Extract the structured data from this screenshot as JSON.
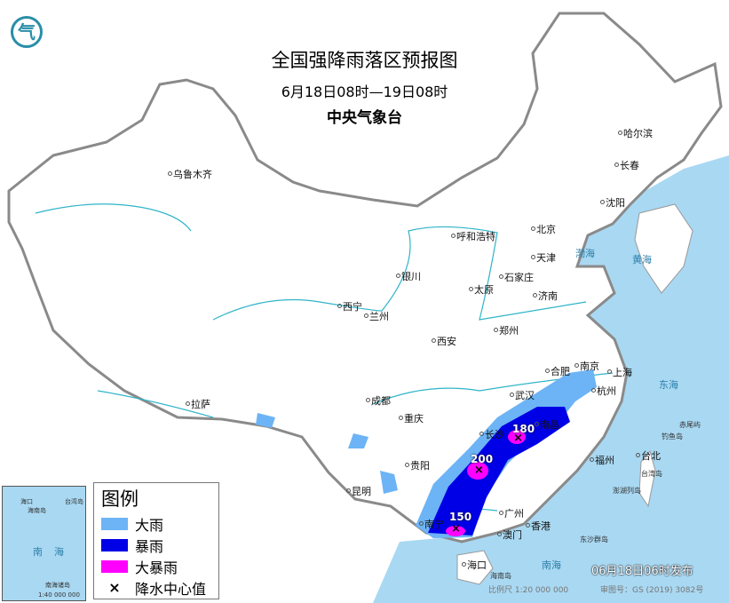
{
  "title": "全国强降雨落区预报图",
  "period": "6月18日08时—19日08时",
  "issuer": "中央气象台",
  "issue_time": "06月18日06时发布",
  "scale": "比例尺 1:20 000 000",
  "map_number": "审图号：GS (2019) 3082号",
  "colors": {
    "heavy_rain": "#6cb4f5",
    "rainstorm": "#0000e6",
    "heavy_rainstorm": "#ff00ff",
    "sea": "#a9d8f2"
  },
  "legend": {
    "title": "图例",
    "items": [
      "大雨",
      "暴雨",
      "大暴雨",
      "降水中心值"
    ],
    "marker": "×"
  },
  "cities": [
    "乌鲁木齐",
    "拉萨",
    "西宁",
    "兰州",
    "银川",
    "呼和浩特",
    "北京",
    "天津",
    "石家庄",
    "太原",
    "济南",
    "郑州",
    "西安",
    "成都",
    "重庆",
    "贵阳",
    "昆明",
    "南宁",
    "广州",
    "澳门",
    "香港",
    "海口",
    "长沙",
    "武汉",
    "南昌",
    "合肥",
    "南京",
    "上海",
    "杭州",
    "福州",
    "台北",
    "哈尔滨",
    "长春",
    "沈阳"
  ],
  "seas": [
    "渤海",
    "黄海",
    "东海",
    "南海"
  ],
  "islands": [
    "海南岛",
    "台湾岛",
    "钓鱼岛",
    "赤尾屿",
    "东沙群岛",
    "澎湖列岛"
  ],
  "rain_centers": [
    {
      "value": "180",
      "near": "长沙"
    },
    {
      "value": "200",
      "near": "贵阳"
    },
    {
      "value": "150",
      "near": "南宁"
    }
  ],
  "inset": {
    "labels": [
      "海口",
      "海南岛",
      "南",
      "海",
      "台湾岛",
      "南海诸岛"
    ],
    "scale": "1:40 000 000"
  },
  "logo_char": "气"
}
